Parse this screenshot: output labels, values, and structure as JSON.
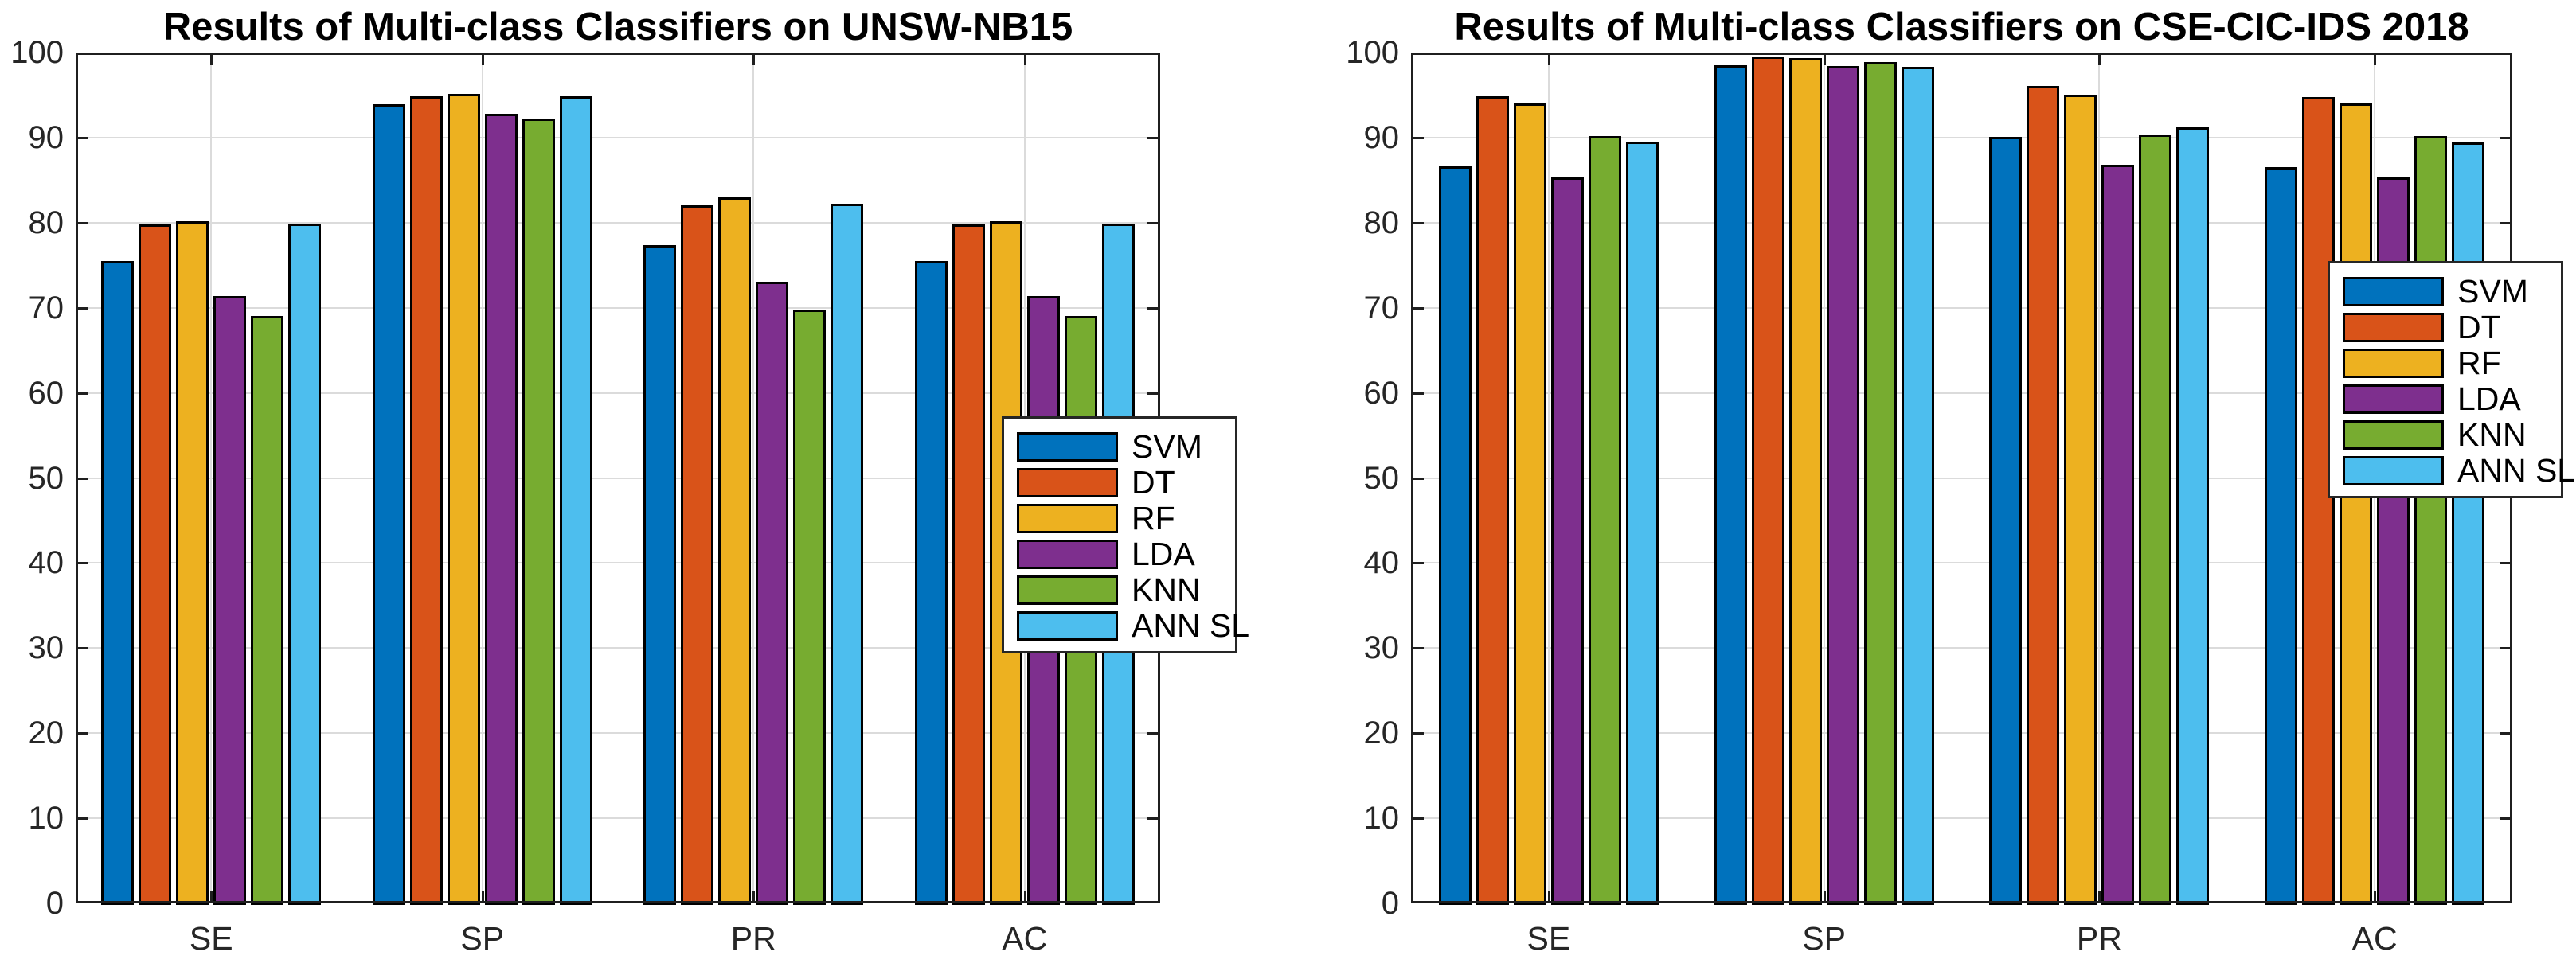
{
  "chart_data": [
    {
      "type": "bar",
      "title": "Results of Multi-class Classifiers on UNSW-NB15",
      "categories": [
        "SE",
        "SP",
        "PR",
        "AC"
      ],
      "series": [
        {
          "name": "SVM",
          "color": "#0072BD",
          "values": [
            75.5,
            93.9,
            77.4,
            75.5
          ]
        },
        {
          "name": "DT",
          "color": "#D95319",
          "values": [
            79.8,
            94.9,
            82.0,
            79.8
          ]
        },
        {
          "name": "RF",
          "color": "#EDB120",
          "values": [
            80.2,
            95.1,
            83.0,
            80.2
          ]
        },
        {
          "name": "LDA",
          "color": "#7E2F8E",
          "values": [
            71.4,
            92.8,
            73.1,
            71.4
          ]
        },
        {
          "name": "KNN",
          "color": "#77AC30",
          "values": [
            69.0,
            92.2,
            69.8,
            69.0
          ]
        },
        {
          "name": "ANN SL",
          "color": "#4DBEEE",
          "values": [
            79.9,
            94.9,
            82.2,
            79.9
          ]
        }
      ],
      "xlabel": "",
      "ylabel": "",
      "ylim": [
        0,
        100
      ],
      "ytick_step": 10,
      "yticks": [
        "0",
        "10",
        "20",
        "30",
        "40",
        "50",
        "60",
        "70",
        "80",
        "90",
        "100"
      ],
      "grid": "horizontal and vertical at group centers",
      "legend_position": "inside-right, overlapping AC group, extends past right axis",
      "bar_edge_color": "#000000"
    },
    {
      "type": "bar",
      "title": "Results of Multi-class Classifiers on CSE-CIC-IDS 2018",
      "categories": [
        "SE",
        "SP",
        "PR",
        "AC"
      ],
      "series": [
        {
          "name": "SVM",
          "color": "#0072BD",
          "values": [
            86.6,
            98.5,
            90.1,
            86.5
          ]
        },
        {
          "name": "DT",
          "color": "#D95319",
          "values": [
            94.9,
            99.5,
            96.1,
            94.8
          ]
        },
        {
          "name": "RF",
          "color": "#EDB120",
          "values": [
            94.0,
            99.3,
            95.0,
            94.0
          ]
        },
        {
          "name": "LDA",
          "color": "#7E2F8E",
          "values": [
            85.3,
            98.4,
            86.8,
            85.3
          ]
        },
        {
          "name": "KNN",
          "color": "#77AC30",
          "values": [
            90.2,
            98.9,
            90.4,
            90.2
          ]
        },
        {
          "name": "ANN SL",
          "color": "#4DBEEE",
          "values": [
            89.5,
            98.3,
            91.2,
            89.4
          ]
        }
      ],
      "xlabel": "",
      "ylabel": "",
      "ylim": [
        0,
        100
      ],
      "ytick_step": 10,
      "yticks": [
        "0",
        "10",
        "20",
        "30",
        "40",
        "50",
        "60",
        "70",
        "80",
        "90",
        "100"
      ],
      "grid": "horizontal and vertical at group centers",
      "legend_position": "upper-right, extends past right axis",
      "bar_edge_color": "#000000"
    }
  ],
  "style": {
    "grid_color": "#DBDBDB",
    "axis_color": "#1F1F1F",
    "tick_label_color": "#262626",
    "title_color": "#000000",
    "background": "#FFFFFF"
  }
}
